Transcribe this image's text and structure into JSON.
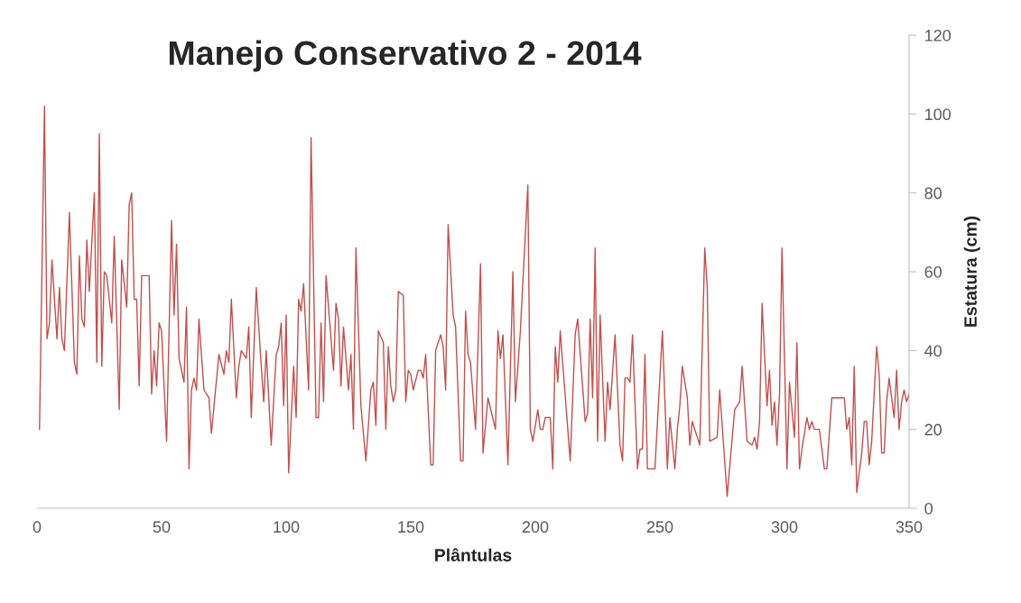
{
  "chart_data": {
    "type": "line",
    "title": "Manejo Conservativo 2 - 2014",
    "xlabel": "Plântulas",
    "ylabel": "Estatura (cm)",
    "xlim": [
      0,
      350
    ],
    "xticks": [
      0,
      50,
      100,
      150,
      200,
      250,
      300,
      350
    ],
    "ylim": [
      0,
      120
    ],
    "yticks": [
      0,
      20,
      40,
      60,
      80,
      100,
      120
    ],
    "grid": false,
    "legend": false,
    "marker": "none",
    "line_style": "solid",
    "series": [
      {
        "color": "#c0504d",
        "x": [
          1,
          3,
          4,
          5,
          6,
          8,
          9,
          10,
          11,
          13,
          15,
          16,
          17,
          18,
          19,
          20,
          21,
          23,
          24,
          25,
          26,
          27,
          28,
          30,
          31,
          33,
          34,
          36,
          37,
          38,
          39,
          40,
          41,
          42,
          45,
          46,
          47,
          48,
          49,
          50,
          52,
          54,
          55,
          56,
          57,
          59,
          60,
          61,
          62,
          63,
          64,
          65,
          67,
          69,
          70,
          73,
          75,
          76,
          77,
          78,
          80,
          81,
          82,
          84,
          85,
          86,
          88,
          90,
          91,
          92,
          94,
          96,
          97,
          98,
          99,
          100,
          101,
          103,
          104,
          105,
          106,
          107,
          109,
          110,
          112,
          113,
          114,
          115,
          116,
          119,
          120,
          121,
          122,
          123,
          125,
          126,
          127,
          128,
          130,
          132,
          134,
          135,
          136,
          137,
          139,
          140,
          141,
          142,
          143,
          144,
          145,
          147,
          148,
          149,
          150,
          151,
          153,
          154,
          155,
          156,
          158,
          159,
          160,
          162,
          163,
          164,
          165,
          167,
          168,
          170,
          171,
          172,
          173,
          174,
          176,
          178,
          179,
          181,
          184,
          185,
          186,
          187,
          189,
          191,
          192,
          194,
          197,
          198,
          199,
          201,
          202,
          203,
          204,
          206,
          207,
          208,
          209,
          210,
          214,
          216,
          217,
          220,
          221,
          222,
          223,
          224,
          225,
          226,
          228,
          229,
          230,
          232,
          234,
          235,
          236,
          237,
          238,
          239,
          241,
          242,
          243,
          244,
          245,
          248,
          251,
          253,
          254,
          256,
          257,
          258,
          259,
          261,
          262,
          263,
          265,
          266,
          268,
          269,
          270,
          273,
          274,
          277,
          280,
          282,
          283,
          285,
          287,
          288,
          289,
          290,
          291,
          293,
          294,
          295,
          296,
          297,
          298,
          299,
          301,
          302,
          304,
          305,
          306,
          307,
          309,
          310,
          311,
          312,
          314,
          316,
          317,
          319,
          324,
          325,
          326,
          327,
          328,
          329,
          331,
          332,
          333,
          334,
          335,
          337,
          338,
          339,
          340,
          341,
          342,
          344,
          345,
          346,
          347,
          348,
          349,
          350
        ],
        "values": [
          20,
          102,
          43,
          47,
          63,
          43,
          56,
          43,
          40,
          75,
          37,
          34,
          64,
          48,
          46,
          68,
          55,
          80,
          37,
          95,
          36,
          60,
          59,
          47,
          69,
          25,
          63,
          51,
          77,
          80,
          53,
          53,
          31,
          59,
          59,
          29,
          40,
          31,
          47,
          45,
          17,
          73,
          49,
          67,
          38,
          32,
          51,
          10,
          30,
          33,
          30,
          48,
          30,
          28,
          19,
          39,
          34,
          40,
          37,
          53,
          28,
          36,
          40,
          38,
          46,
          23,
          56,
          36,
          27,
          40,
          16,
          39,
          41,
          47,
          26,
          49,
          9,
          36,
          23,
          53,
          50,
          57,
          30,
          94,
          23,
          23,
          47,
          27,
          59,
          35,
          52,
          48,
          31,
          46,
          30,
          39,
          20,
          66,
          26,
          12,
          30,
          32,
          21,
          45,
          42,
          20,
          41,
          31,
          27,
          30,
          55,
          54,
          27,
          35,
          34,
          30,
          35,
          35,
          33,
          39,
          11,
          11,
          40,
          44,
          41,
          30,
          72,
          49,
          46,
          12,
          12,
          50,
          39,
          37,
          20,
          62,
          14,
          28,
          20,
          45,
          38,
          44,
          11,
          60,
          27,
          45,
          82,
          20,
          17,
          25,
          20,
          20,
          23,
          23,
          10,
          41,
          32,
          45,
          12,
          44,
          48,
          22,
          24,
          48,
          28,
          66,
          17,
          49,
          17,
          32,
          25,
          44,
          16,
          12,
          33,
          33,
          32,
          44,
          10,
          15,
          15,
          39,
          10,
          10,
          45,
          10,
          23,
          10,
          20,
          26,
          36,
          28,
          16,
          22,
          18,
          16,
          66,
          56,
          17,
          18,
          30,
          3,
          25,
          27,
          36,
          17,
          16,
          18,
          15,
          22,
          52,
          26,
          35,
          21,
          27,
          16,
          29,
          66,
          10,
          32,
          18,
          42,
          10,
          15,
          23,
          20,
          22,
          20,
          20,
          10,
          10,
          28,
          28,
          20,
          23,
          11,
          36,
          4,
          14,
          22,
          22,
          11,
          17,
          41,
          34,
          14,
          14,
          27,
          33,
          23,
          35,
          20,
          27,
          30,
          27,
          29
        ]
      }
    ]
  }
}
